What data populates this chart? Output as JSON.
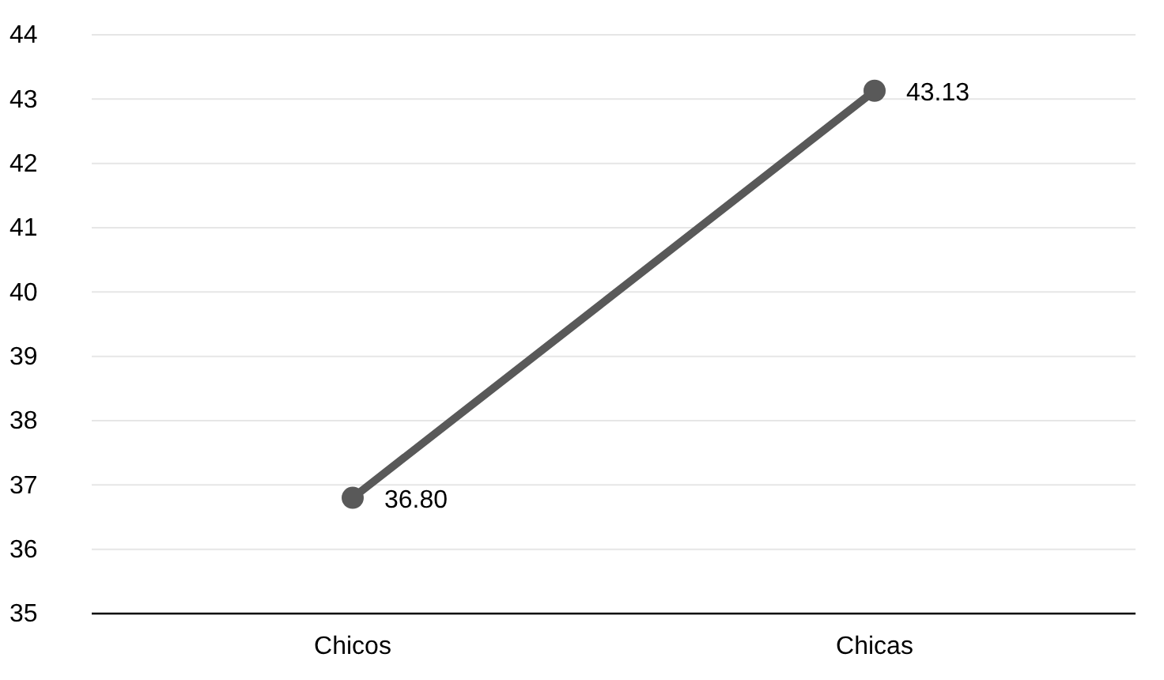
{
  "chart_data": {
    "type": "line",
    "categories": [
      "Chicos",
      "Chicas"
    ],
    "series": [
      {
        "color": "#595959",
        "values": [
          36.8,
          43.13
        ],
        "value_labels": [
          "36.80",
          "43.13"
        ]
      }
    ],
    "ylim": [
      35,
      44
    ],
    "yticks": [
      35,
      36,
      37,
      38,
      39,
      40,
      41,
      42,
      43,
      44
    ],
    "grid": "y",
    "marker": "circle",
    "line_style": "solid"
  }
}
